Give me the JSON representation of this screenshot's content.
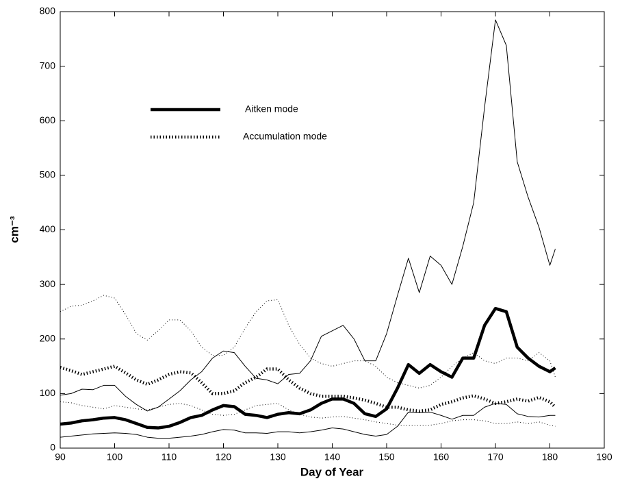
{
  "chart_data": {
    "type": "line",
    "xlabel": "Day of Year",
    "ylabel": "cm⁻³",
    "x": [
      90,
      92,
      94,
      96,
      98,
      100,
      102,
      104,
      106,
      108,
      110,
      112,
      114,
      116,
      118,
      120,
      122,
      124,
      126,
      128,
      130,
      132,
      134,
      136,
      138,
      140,
      142,
      144,
      146,
      148,
      150,
      152,
      154,
      156,
      158,
      160,
      162,
      164,
      166,
      168,
      170,
      172,
      174,
      176,
      178,
      180,
      181
    ],
    "series": [
      {
        "name": "Aitken mode",
        "color": "#000000",
        "style": "solid",
        "width": 4.5,
        "values": [
          44,
          46,
          50,
          52,
          55,
          56,
          52,
          45,
          38,
          37,
          40,
          47,
          56,
          60,
          70,
          78,
          76,
          62,
          60,
          56,
          62,
          65,
          63,
          70,
          82,
          90,
          90,
          82,
          63,
          58,
          72,
          110,
          153,
          137,
          153,
          140,
          130,
          165,
          165,
          225,
          256,
          250,
          185,
          165,
          150,
          140,
          147
        ]
      },
      {
        "color": "#000000",
        "style": "solid",
        "width": 1,
        "values": [
          97,
          100,
          108,
          107,
          115,
          115,
          95,
          80,
          68,
          75,
          90,
          105,
          125,
          140,
          165,
          178,
          175,
          150,
          128,
          125,
          118,
          135,
          137,
          160,
          205,
          215,
          225,
          200,
          160,
          160,
          210,
          280,
          348,
          285,
          352,
          335,
          300,
          370,
          450,
          625,
          785,
          738,
          525,
          460,
          405,
          335,
          365
        ]
      },
      {
        "color": "#000000",
        "style": "solid",
        "width": 1,
        "values": [
          20,
          22,
          24,
          26,
          27,
          28,
          27,
          25,
          20,
          18,
          18,
          20,
          22,
          25,
          30,
          34,
          33,
          28,
          28,
          27,
          30,
          30,
          28,
          30,
          33,
          37,
          35,
          30,
          25,
          22,
          25,
          40,
          66,
          65,
          66,
          60,
          53,
          60,
          60,
          75,
          82,
          80,
          63,
          58,
          57,
          60,
          60
        ]
      },
      {
        "name": "Accumulation mode",
        "color": "#000000",
        "style": "dotted",
        "width": 4.5,
        "values": [
          148,
          142,
          135,
          140,
          145,
          150,
          138,
          125,
          117,
          125,
          135,
          140,
          138,
          120,
          100,
          100,
          105,
          120,
          130,
          145,
          145,
          125,
          110,
          100,
          95,
          95,
          95,
          92,
          88,
          82,
          75,
          75,
          70,
          68,
          70,
          80,
          85,
          92,
          96,
          90,
          82,
          85,
          90,
          86,
          93,
          85,
          75
        ]
      },
      {
        "color": "#000000",
        "style": "dotted",
        "width": 1,
        "values": [
          250,
          260,
          262,
          270,
          280,
          275,
          245,
          210,
          198,
          215,
          235,
          235,
          215,
          185,
          170,
          170,
          185,
          220,
          250,
          270,
          272,
          225,
          190,
          165,
          155,
          150,
          155,
          160,
          160,
          150,
          130,
          120,
          115,
          110,
          115,
          130,
          150,
          165,
          175,
          160,
          155,
          165,
          165,
          160,
          175,
          160,
          130
        ]
      },
      {
        "color": "#000000",
        "style": "dotted",
        "width": 1,
        "values": [
          85,
          83,
          78,
          75,
          72,
          78,
          75,
          72,
          70,
          75,
          80,
          82,
          78,
          70,
          62,
          60,
          62,
          70,
          78,
          80,
          82,
          70,
          62,
          57,
          55,
          57,
          58,
          55,
          52,
          48,
          45,
          42,
          42,
          42,
          42,
          45,
          50,
          52,
          52,
          50,
          45,
          45,
          48,
          45,
          48,
          42,
          40
        ]
      }
    ],
    "xlim": [
      90,
      190
    ],
    "xticks": [
      90,
      100,
      110,
      120,
      130,
      140,
      150,
      160,
      170,
      180,
      190
    ],
    "ylim": [
      0,
      800
    ],
    "yticks": [
      0,
      100,
      200,
      300,
      400,
      500,
      600,
      700,
      800
    ],
    "grid": false
  }
}
